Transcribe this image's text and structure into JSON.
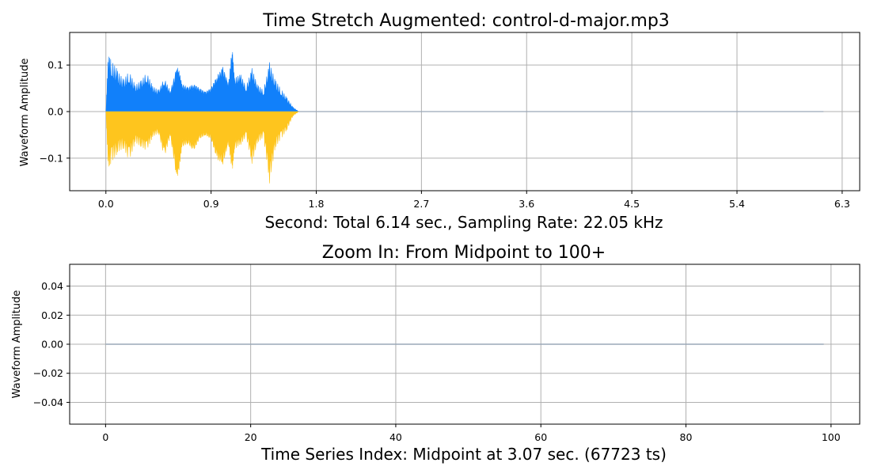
{
  "chart_data": [
    {
      "type": "area",
      "title": "Time Stretch Augmented: control-d-major.mp3",
      "xlabel": "Second: Total 6.14 sec., Sampling Rate: 22.05 kHz",
      "ylabel": "Waveform Amplitude",
      "xlim": [
        -0.31,
        6.45
      ],
      "ylim": [
        -0.17,
        0.17
      ],
      "x_ticks": [
        "0.0",
        "0.9",
        "1.8",
        "2.7",
        "3.6",
        "4.5",
        "5.4",
        "6.3"
      ],
      "y_ticks": [
        "0.1",
        "0.0",
        "−0.1"
      ],
      "grid": true,
      "total_duration_sec": 6.14,
      "sampling_rate_khz": 22.05,
      "colors": {
        "positive": "#1180fa",
        "negative": "#fec51e",
        "baseline": "#9aa8b8"
      },
      "series": [
        {
          "polarity": "positive",
          "x": [
            0.0,
            0.02,
            0.05,
            0.1,
            0.15,
            0.2,
            0.25,
            0.3,
            0.35,
            0.4,
            0.45,
            0.5,
            0.55,
            0.6,
            0.62,
            0.65,
            0.7,
            0.75,
            0.8,
            0.85,
            0.9,
            0.95,
            1.0,
            1.05,
            1.08,
            1.1,
            1.15,
            1.2,
            1.25,
            1.3,
            1.35,
            1.4,
            1.45,
            1.5,
            1.55,
            1.6,
            1.65
          ],
          "values": [
            0.0,
            0.12,
            0.11,
            0.09,
            0.07,
            0.09,
            0.06,
            0.07,
            0.09,
            0.06,
            0.05,
            0.08,
            0.05,
            0.1,
            0.11,
            0.07,
            0.06,
            0.07,
            0.06,
            0.05,
            0.06,
            0.09,
            0.11,
            0.07,
            0.16,
            0.08,
            0.09,
            0.06,
            0.1,
            0.06,
            0.05,
            0.11,
            0.07,
            0.05,
            0.03,
            0.01,
            0.0
          ]
        },
        {
          "polarity": "negative",
          "x": [
            0.0,
            0.02,
            0.05,
            0.1,
            0.15,
            0.2,
            0.25,
            0.3,
            0.35,
            0.4,
            0.45,
            0.5,
            0.55,
            0.6,
            0.62,
            0.65,
            0.7,
            0.75,
            0.8,
            0.85,
            0.9,
            0.95,
            1.0,
            1.05,
            1.08,
            1.1,
            1.15,
            1.2,
            1.25,
            1.3,
            1.35,
            1.4,
            1.45,
            1.5,
            1.55,
            1.6,
            1.65
          ],
          "values": [
            0.0,
            -0.12,
            -0.11,
            -0.09,
            -0.08,
            -0.11,
            -0.07,
            -0.08,
            -0.09,
            -0.06,
            -0.05,
            -0.11,
            -0.06,
            -0.15,
            -0.16,
            -0.09,
            -0.08,
            -0.1,
            -0.07,
            -0.06,
            -0.07,
            -0.12,
            -0.13,
            -0.08,
            -0.15,
            -0.09,
            -0.08,
            -0.06,
            -0.12,
            -0.07,
            -0.06,
            -0.16,
            -0.08,
            -0.06,
            -0.04,
            -0.01,
            0.0
          ]
        }
      ]
    },
    {
      "type": "line",
      "title": "Zoom In: From Midpoint to 100+",
      "xlabel": "Time Series Index: Midpoint at 3.07 sec. (67723 ts)",
      "ylabel": "Waveform Amplitude",
      "xlim": [
        -4.95,
        103.95
      ],
      "ylim": [
        -0.055,
        0.055
      ],
      "x_ticks": [
        "0",
        "20",
        "40",
        "60",
        "80",
        "100"
      ],
      "y_ticks": [
        "0.04",
        "0.02",
        "0.00",
        "−0.02",
        "−0.04"
      ],
      "grid": true,
      "midpoint_sec": 3.07,
      "midpoint_ts": 67723,
      "colors": {
        "line": "#9aa8b8"
      },
      "series": [
        {
          "x": [
            0,
            99
          ],
          "values": [
            0.0,
            0.0
          ]
        }
      ]
    }
  ]
}
